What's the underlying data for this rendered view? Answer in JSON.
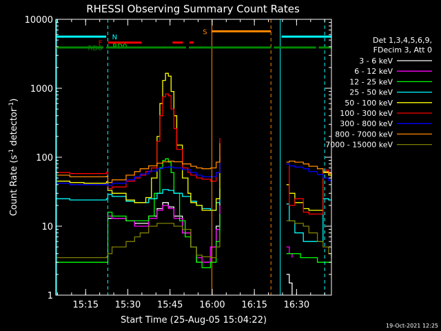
{
  "chart_data": {
    "type": "line",
    "title": "RHESSI Observing Summary Count Rates",
    "xlabel": "Start Time (25-Aug-05 15:04:22)",
    "ylabel_main": "Count Rate (s",
    "ylabel_sup": "-1",
    "ylabel_rest": " detector",
    "ylabel_end": ")",
    "yscale": "log",
    "ylim": [
      1,
      10000
    ],
    "xlim": [
      0,
      98
    ],
    "y_ticks": [
      {
        "value": 1,
        "label": "1"
      },
      {
        "value": 10,
        "label": "10"
      },
      {
        "value": 100,
        "label": "100"
      },
      {
        "value": 1000,
        "label": "1000"
      },
      {
        "value": 10000,
        "label": "10000"
      }
    ],
    "x_ticks": [
      {
        "value": 10.6,
        "label": "15:15"
      },
      {
        "value": 25.6,
        "label": "15:30"
      },
      {
        "value": 40.6,
        "label": "15:45"
      },
      {
        "value": 55.6,
        "label": "16:00"
      },
      {
        "value": 70.6,
        "label": "16:15"
      },
      {
        "value": 85.6,
        "label": "16:30"
      }
    ],
    "legend_header": [
      "Det 1,3,4,5,6,9,",
      "FDecim 3, Att 0"
    ],
    "timestamp": "19-Oct-2021 12:25",
    "series": [
      {
        "name": "3 - 6 keV",
        "color": "#ffffff",
        "t": [
          0,
          5,
          10,
          15,
          18,
          18.5,
          20,
          25,
          28,
          30,
          33,
          36,
          38,
          40,
          42,
          45,
          48,
          50,
          52,
          55,
          57,
          58.3,
          75,
          81,
          82,
          83,
          84,
          84.5,
          90,
          95,
          97,
          98
        ],
        "v": [
          null,
          null,
          null,
          null,
          null,
          13,
          13,
          12,
          11,
          11,
          14,
          18,
          22,
          19,
          14,
          8,
          5,
          3,
          3,
          5,
          10,
          22,
          null,
          null,
          2,
          1.5,
          1,
          null,
          null,
          null,
          null,
          null
        ]
      },
      {
        "name": "6 - 12 keV",
        "color": "#ff00ff",
        "t": [
          0,
          18,
          18.5,
          20,
          25,
          28,
          30,
          33,
          36,
          38,
          40,
          42,
          45,
          48,
          50,
          52,
          55,
          57,
          58.3,
          75,
          81,
          82,
          83,
          84,
          84.5,
          98
        ],
        "v": [
          null,
          null,
          14,
          13,
          12,
          10,
          10,
          13,
          17,
          20,
          18,
          13,
          8,
          5,
          3.5,
          3,
          5,
          9,
          20,
          null,
          null,
          5,
          4,
          3.5,
          null,
          null
        ]
      },
      {
        "name": "12 - 25 keV",
        "color": "#00ff00",
        "t": [
          0,
          5,
          10,
          15,
          18,
          18.5,
          20,
          25,
          28,
          30,
          33,
          35,
          37,
          38,
          39,
          40,
          41,
          42,
          44,
          46,
          48,
          50,
          52,
          55,
          57,
          58.3,
          75,
          81,
          82,
          83,
          85,
          87,
          90,
          93,
          95,
          97,
          98
        ],
        "v": [
          3,
          3,
          3,
          3,
          3,
          16,
          14,
          12,
          12,
          12,
          14,
          30,
          70,
          90,
          95,
          85,
          60,
          30,
          12,
          7,
          5,
          3,
          2.5,
          3,
          6,
          15,
          null,
          null,
          4,
          4,
          4,
          3.5,
          3.5,
          3,
          3,
          3,
          3
        ]
      },
      {
        "name": "25 - 50 keV",
        "color": "#00ffff",
        "t": [
          0,
          5,
          10,
          15,
          18,
          18.5,
          20,
          25,
          28,
          30,
          33,
          36,
          38,
          40,
          42,
          45,
          48,
          50,
          52,
          55,
          57,
          58.3,
          75,
          81,
          82,
          83,
          85,
          88,
          90,
          93,
          95,
          97,
          98
        ],
        "v": [
          25,
          24,
          24,
          24,
          25,
          29,
          27,
          23,
          22,
          22,
          25,
          30,
          34,
          33,
          30,
          27,
          23,
          20,
          18,
          17,
          22,
          35,
          null,
          null,
          21,
          12,
          8,
          6,
          6,
          6,
          25,
          24,
          24
        ]
      },
      {
        "name": "50 - 100 keV",
        "color": "#ffff00",
        "t": [
          0,
          5,
          10,
          15,
          18,
          18.5,
          20,
          25,
          28,
          30,
          32,
          34,
          36,
          37,
          38,
          39,
          40,
          41,
          42,
          43,
          45,
          47,
          48,
          50,
          52,
          55,
          57,
          58.3,
          75,
          81,
          82,
          83,
          85,
          88,
          90,
          93,
          95,
          97,
          98
        ],
        "v": [
          45,
          43,
          42,
          42,
          44,
          33,
          30,
          24,
          22,
          22,
          26,
          50,
          200,
          600,
          1300,
          1650,
          1500,
          900,
          400,
          150,
          50,
          30,
          22,
          20,
          17,
          17,
          25,
          105,
          null,
          null,
          40,
          30,
          22,
          18,
          17,
          17,
          60,
          55,
          50
        ]
      },
      {
        "name": "100 - 300 keV",
        "color": "#ff0000",
        "t": [
          0,
          5,
          10,
          15,
          18,
          18.5,
          20,
          25,
          28,
          30,
          32,
          34,
          36,
          37,
          38,
          39,
          40,
          41,
          42,
          43,
          45,
          47,
          48,
          50,
          52,
          55,
          57,
          58.3,
          75,
          81,
          82,
          83,
          85,
          88,
          90,
          93,
          95,
          97,
          98
        ],
        "v": [
          60,
          58,
          58,
          58,
          61,
          35,
          37,
          45,
          50,
          55,
          62,
          70,
          170,
          400,
          750,
          830,
          780,
          500,
          260,
          130,
          70,
          60,
          55,
          50,
          48,
          45,
          60,
          190,
          null,
          null,
          80,
          20,
          25,
          16,
          15,
          15,
          65,
          60,
          55
        ]
      },
      {
        "name": "300 - 800 keV",
        "color": "#0000ff",
        "t": [
          0,
          5,
          10,
          15,
          18,
          18.5,
          20,
          25,
          28,
          30,
          33,
          36,
          38,
          40,
          42,
          45,
          48,
          50,
          52,
          55,
          57,
          58.3,
          75,
          81,
          82,
          83,
          85,
          88,
          90,
          93,
          95,
          97,
          98
        ],
        "v": [
          42,
          40,
          40,
          40,
          41,
          39,
          42,
          47,
          52,
          57,
          63,
          68,
          71,
          72,
          70,
          66,
          60,
          55,
          52,
          52,
          60,
          130,
          null,
          null,
          80,
          75,
          72,
          68,
          62,
          56,
          50,
          46,
          44
        ]
      },
      {
        "name": "800 - 7000 keV",
        "color": "#ff8800",
        "t": [
          0,
          5,
          10,
          15,
          18,
          18.5,
          20,
          25,
          28,
          30,
          33,
          36,
          38,
          40,
          42,
          45,
          48,
          50,
          52,
          55,
          57,
          58.3,
          75,
          81,
          82,
          83,
          85,
          88,
          90,
          93,
          95,
          97,
          98
        ],
        "v": [
          55,
          52,
          52,
          52,
          53,
          43,
          47,
          55,
          62,
          68,
          75,
          82,
          86,
          88,
          86,
          80,
          74,
          70,
          68,
          70,
          85,
          160,
          null,
          null,
          85,
          88,
          85,
          80,
          74,
          68,
          62,
          58,
          55
        ]
      },
      {
        "name": "7000 - 15000 keV",
        "color": "#808000",
        "t": [
          0,
          5,
          10,
          15,
          18,
          18.5,
          20,
          25,
          28,
          30,
          33,
          36,
          38,
          40,
          42,
          45,
          48,
          50,
          52,
          55,
          57,
          58.3,
          75,
          81,
          82,
          83,
          85,
          88,
          90,
          93,
          95,
          97,
          98
        ],
        "v": [
          3.5,
          3.5,
          3.5,
          3.5,
          3.6,
          4,
          5,
          6,
          7,
          8,
          10,
          11,
          11,
          11,
          10,
          9,
          5,
          3.8,
          3.6,
          3.5,
          5,
          8,
          null,
          null,
          12,
          12,
          11,
          10,
          8,
          6,
          5,
          4,
          3.5
        ]
      }
    ],
    "flags": [
      {
        "label": "N",
        "color": "#00ffff",
        "y": 5600,
        "label_t": 19.5,
        "label_side": "right",
        "segments": [
          [
            0,
            17.9
          ],
          [
            80.3,
            98
          ]
        ]
      },
      {
        "label": "S",
        "color": "#ff8800",
        "y": 6700,
        "label_t": 54.3,
        "label_side": "left",
        "segments": [
          [
            55.3,
            76.5
          ]
        ]
      },
      {
        "label": "F",
        "color": "#ff0000",
        "y": 4600,
        "label_t": 17.0,
        "label_side": "left",
        "segments": [
          [
            18.6,
            30.5
          ],
          [
            41.5,
            45.2
          ],
          [
            47.5,
            49
          ]
        ]
      },
      {
        "label": "RD0",
        "color": "#00ff00",
        "y": 4100,
        "label_t": 19.7,
        "label_side": "right",
        "segments": []
      },
      {
        "label": "RD6",
        "color": "#008800",
        "y": 3900,
        "label_t": 17.0,
        "label_side": "left",
        "segments": [
          [
            0,
            16.9
          ],
          [
            17.9,
            46.3
          ],
          [
            47.3,
            76.5
          ],
          [
            77.5,
            92.5
          ],
          [
            93.5,
            98
          ]
        ]
      }
    ],
    "vlines": [
      {
        "t": 18.5,
        "color": "#00ffff",
        "style": "dashed"
      },
      {
        "t": 55.5,
        "color": "#ff8800",
        "style": "solid"
      },
      {
        "t": 76.5,
        "color": "#ff8800",
        "style": "dashed"
      },
      {
        "t": 79.8,
        "color": "#00ffff",
        "style": "solid"
      },
      {
        "t": 95.6,
        "color": "#00ffff",
        "style": "dashed"
      }
    ],
    "edge_lines": [
      {
        "t": 0,
        "color": "#00ffff"
      }
    ]
  }
}
